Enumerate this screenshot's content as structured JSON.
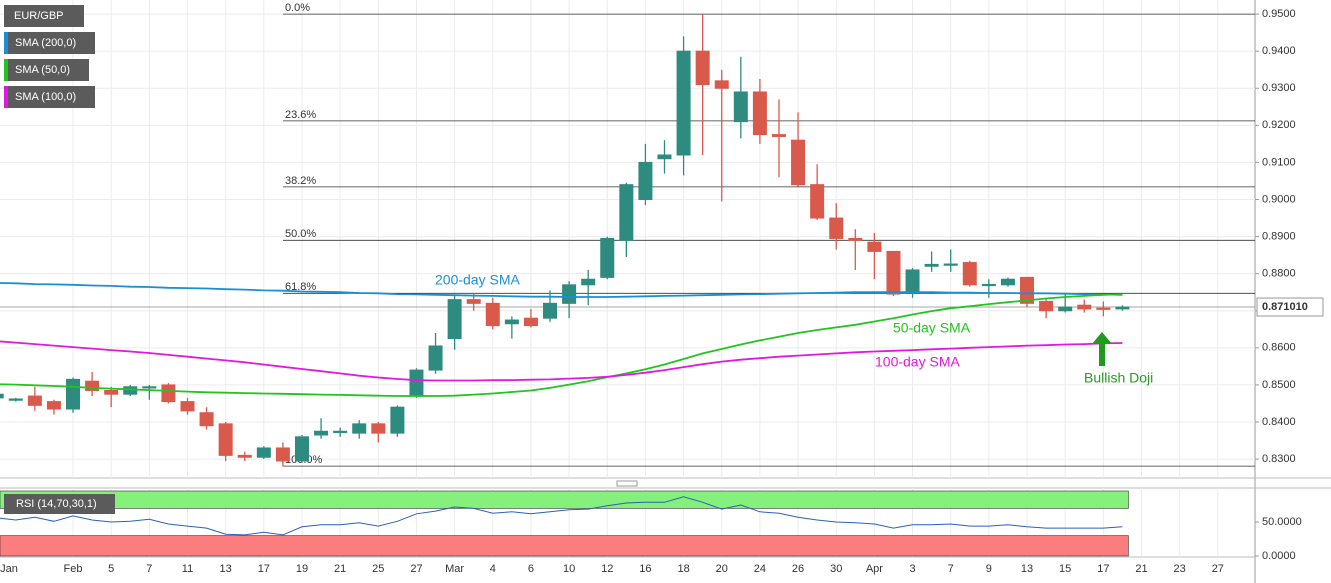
{
  "chart_data": {
    "type": "candlestick",
    "symbol": "EUR/GBP",
    "up_color": "#2e8b7f",
    "down_color": "#d9594b",
    "categories": [
      "Jan",
      null,
      null,
      null,
      "Feb",
      null,
      "5",
      null,
      "7",
      null,
      "11",
      null,
      "13",
      null,
      "17",
      null,
      "19",
      null,
      "21",
      null,
      "25",
      null,
      "27",
      null,
      "Mar",
      null,
      "4",
      null,
      "6",
      null,
      "10",
      null,
      "12",
      null,
      "16",
      null,
      "18",
      null,
      "20",
      null,
      "24",
      null,
      "26",
      null,
      "30",
      null,
      "Apr",
      null,
      "3",
      null,
      "7",
      null,
      "9",
      null,
      "13",
      null,
      "15",
      null,
      "17",
      null,
      "21",
      null,
      "23",
      null,
      "27"
    ],
    "open": [
      0.8465,
      0.846,
      0.847,
      0.8455,
      0.8435,
      0.851,
      0.8485,
      0.8475,
      0.8495,
      0.85,
      0.8455,
      0.8425,
      0.8395,
      0.831,
      0.8305,
      0.833,
      0.8295,
      0.8365,
      0.8375,
      0.837,
      0.8395,
      0.837,
      0.847,
      0.854,
      0.8625,
      0.873,
      0.872,
      0.8665,
      0.868,
      0.868,
      0.872,
      0.877,
      0.879,
      0.889,
      0.9,
      0.911,
      0.912,
      0.94,
      0.932,
      0.921,
      0.929,
      0.9175,
      0.916,
      0.904,
      0.895,
      0.8895,
      0.8885,
      0.886,
      0.875,
      0.882,
      0.8825,
      0.883,
      0.877,
      0.877,
      0.879,
      0.8725,
      0.87,
      0.8715,
      0.8707,
      0.8705,
      null,
      null,
      null,
      null,
      null
    ],
    "high": [
      0.849,
      0.8465,
      0.8495,
      0.846,
      0.852,
      0.8535,
      0.8495,
      0.85,
      0.85,
      0.8505,
      0.8465,
      0.844,
      0.84,
      0.832,
      0.8335,
      0.8345,
      0.8365,
      0.841,
      0.8385,
      0.8405,
      0.84,
      0.8445,
      0.8545,
      0.864,
      0.874,
      0.8745,
      0.8735,
      0.8685,
      0.8705,
      0.8755,
      0.878,
      0.881,
      0.89,
      0.9045,
      0.915,
      0.916,
      0.944,
      0.95,
      0.935,
      0.9385,
      0.9325,
      0.927,
      0.9235,
      0.9095,
      0.899,
      0.892,
      0.891,
      0.886,
      0.8815,
      0.886,
      0.8865,
      0.8835,
      0.8785,
      0.879,
      0.879,
      0.8735,
      0.8745,
      0.873,
      0.8725,
      0.8715,
      null,
      null,
      null,
      null,
      null
    ],
    "low": [
      0.8455,
      0.8455,
      0.843,
      0.842,
      0.8425,
      0.847,
      0.844,
      0.847,
      0.846,
      0.845,
      0.842,
      0.838,
      0.8295,
      0.8295,
      0.83,
      0.828,
      0.829,
      0.8355,
      0.836,
      0.8355,
      0.8345,
      0.836,
      0.8465,
      0.853,
      0.8595,
      0.87,
      0.865,
      0.8625,
      0.8655,
      0.867,
      0.868,
      0.8715,
      0.8785,
      0.8845,
      0.8985,
      0.907,
      0.9065,
      0.912,
      0.8995,
      0.9165,
      0.915,
      0.906,
      0.9035,
      0.8945,
      0.8865,
      0.881,
      0.8785,
      0.874,
      0.8735,
      0.8805,
      0.8805,
      0.8765,
      0.8735,
      0.8765,
      0.871,
      0.868,
      0.8695,
      0.8695,
      0.8685,
      0.87,
      null,
      null,
      null,
      null,
      null
    ],
    "close": [
      0.8475,
      0.8462,
      0.8445,
      0.8435,
      0.8515,
      0.8485,
      0.8475,
      0.8495,
      0.8495,
      0.8455,
      0.843,
      0.839,
      0.831,
      0.8305,
      0.833,
      0.8295,
      0.836,
      0.8375,
      0.8375,
      0.8395,
      0.837,
      0.844,
      0.854,
      0.8605,
      0.873,
      0.872,
      0.866,
      0.8675,
      0.866,
      0.872,
      0.877,
      0.8785,
      0.8895,
      0.904,
      0.91,
      0.912,
      0.94,
      0.931,
      0.93,
      0.929,
      0.9175,
      0.917,
      0.904,
      0.895,
      0.8895,
      0.889,
      0.886,
      0.8745,
      0.881,
      0.8825,
      0.8826,
      0.877,
      0.8771,
      0.8785,
      0.872,
      0.87,
      0.871,
      0.8705,
      0.8705,
      0.871,
      null,
      null,
      null,
      null,
      null
    ],
    "series": [
      {
        "name": "SMA (200,0)",
        "color": "#1b8fd6",
        "values": [
          0.8775,
          0.8774,
          0.8772,
          0.8771,
          0.877,
          0.8768,
          0.8767,
          0.8765,
          0.8764,
          0.8762,
          0.8761,
          0.876,
          0.8758,
          0.8757,
          0.8755,
          0.8754,
          0.8752,
          0.8751,
          0.875,
          0.8748,
          0.8747,
          0.8745,
          0.8744,
          0.8743,
          0.8742,
          0.8741,
          0.874,
          0.8739,
          0.8738,
          0.8738,
          0.8737,
          0.8737,
          0.8737,
          0.8738,
          0.8739,
          0.874,
          0.8741,
          0.8742,
          0.8743,
          0.8744,
          0.8745,
          0.8746,
          0.8747,
          0.8748,
          0.8749,
          0.875,
          0.875,
          0.875,
          0.875,
          0.875,
          0.8749,
          0.8749,
          0.8748,
          0.8748,
          0.8747,
          0.8747,
          0.8746,
          0.8745,
          0.8744,
          0.8743,
          null,
          null,
          null,
          null,
          null
        ]
      },
      {
        "name": "SMA (50,0)",
        "color": "#22c41e",
        "values": [
          0.8502,
          0.8501,
          0.8499,
          0.8497,
          0.8495,
          0.8492,
          0.849,
          0.8488,
          0.8486,
          0.8484,
          0.8482,
          0.848,
          0.8479,
          0.8478,
          0.8477,
          0.8476,
          0.8475,
          0.8474,
          0.8473,
          0.8472,
          0.8471,
          0.847,
          0.847,
          0.847,
          0.8471,
          0.8474,
          0.8477,
          0.8481,
          0.8485,
          0.8492,
          0.8501,
          0.851,
          0.8521,
          0.8531,
          0.8542,
          0.8555,
          0.857,
          0.8585,
          0.8597,
          0.8609,
          0.862,
          0.863,
          0.864,
          0.8648,
          0.8655,
          0.8662,
          0.8671,
          0.868,
          0.869,
          0.8699,
          0.8707,
          0.8712,
          0.8718,
          0.8723,
          0.8728,
          0.8733,
          0.8737,
          0.874,
          0.8743,
          0.8745,
          null,
          null,
          null,
          null,
          null
        ]
      },
      {
        "name": "SMA (100,0)",
        "color": "#e019df",
        "values": [
          0.8618,
          0.8614,
          0.861,
          0.8606,
          0.8602,
          0.8598,
          0.8594,
          0.859,
          0.8586,
          0.8581,
          0.8576,
          0.8571,
          0.8566,
          0.8561,
          0.8555,
          0.8549,
          0.8543,
          0.8537,
          0.8531,
          0.8525,
          0.852,
          0.8516,
          0.8513,
          0.8512,
          0.8512,
          0.8512,
          0.8513,
          0.8513,
          0.8514,
          0.8515,
          0.8517,
          0.8519,
          0.8522,
          0.8527,
          0.8533,
          0.854,
          0.8548,
          0.8556,
          0.8563,
          0.8568,
          0.8572,
          0.8576,
          0.8579,
          0.8582,
          0.8585,
          0.8588,
          0.859,
          0.8592,
          0.8594,
          0.8596,
          0.8598,
          0.86,
          0.8602,
          0.8604,
          0.8606,
          0.8607,
          0.8609,
          0.861,
          0.8612,
          0.8613,
          null,
          null,
          null,
          null,
          null
        ]
      }
    ],
    "ylim": [
      0.8249,
      0.9538
    ],
    "yticks": [
      {
        "value": 0.83,
        "label": "0.8300"
      },
      {
        "value": 0.84,
        "label": "0.8400"
      },
      {
        "value": 0.85,
        "label": "0.8500"
      },
      {
        "value": 0.86,
        "label": "0.8600"
      },
      {
        "value": 0.87,
        "label": "0.8700"
      },
      {
        "value": 0.88,
        "label": "0.8800"
      },
      {
        "value": 0.89,
        "label": "0.8900"
      },
      {
        "value": 0.9,
        "label": "0.9000"
      },
      {
        "value": 0.91,
        "label": "0.9100"
      },
      {
        "value": 0.92,
        "label": "0.9200"
      },
      {
        "value": 0.93,
        "label": "0.9300"
      },
      {
        "value": 0.94,
        "label": "0.9400"
      },
      {
        "value": 0.95,
        "label": "0.9500"
      }
    ],
    "grid": true,
    "fib_levels": [
      {
        "value": 0.95,
        "label": "0.0%"
      },
      {
        "value": 0.9212,
        "label": "23.6%"
      },
      {
        "value": 0.9034,
        "label": "38.2%"
      },
      {
        "value": 0.889,
        "label": "50.0%"
      },
      {
        "value": 0.8747,
        "label": "61.8%"
      },
      {
        "value": 0.8281,
        "label": "100.0%"
      }
    ],
    "last_price": {
      "value": 0.87101,
      "label": "0.871010"
    },
    "annotations": [
      {
        "text": "200-day SMA",
        "color": "#1b8fd6"
      },
      {
        "text": "50-day SMA",
        "color": "#22c41e"
      },
      {
        "text": "100-day SMA",
        "color": "#e019df"
      },
      {
        "text": "Bullish Doji",
        "color": "#22a01e"
      }
    ],
    "rsi": {
      "name": "RSI (14,70,30,1)",
      "color": "#2a5fc0",
      "overbought": 70,
      "oversold": 30,
      "overbought_color": "#86f07c",
      "oversold_color": "#fb7d7d",
      "values": [
        56,
        53,
        57,
        51,
        59,
        53,
        50,
        51,
        54,
        47,
        44,
        41,
        32,
        31,
        35,
        31,
        43,
        46,
        46,
        49,
        44,
        51,
        62,
        66,
        72,
        70,
        63,
        65,
        62,
        65,
        68,
        69,
        74,
        78,
        79,
        79,
        87,
        79,
        69,
        75,
        65,
        63,
        57,
        53,
        50,
        49,
        47,
        41,
        46,
        46,
        47,
        44,
        44,
        46,
        43,
        41,
        41,
        41,
        41,
        43,
        null,
        null,
        null,
        null,
        null
      ],
      "ylim": [
        0,
        100
      ],
      "yticks": [
        {
          "value": 50,
          "label": "50.0000"
        },
        {
          "value": 0,
          "label": "0.0000"
        }
      ]
    }
  }
}
